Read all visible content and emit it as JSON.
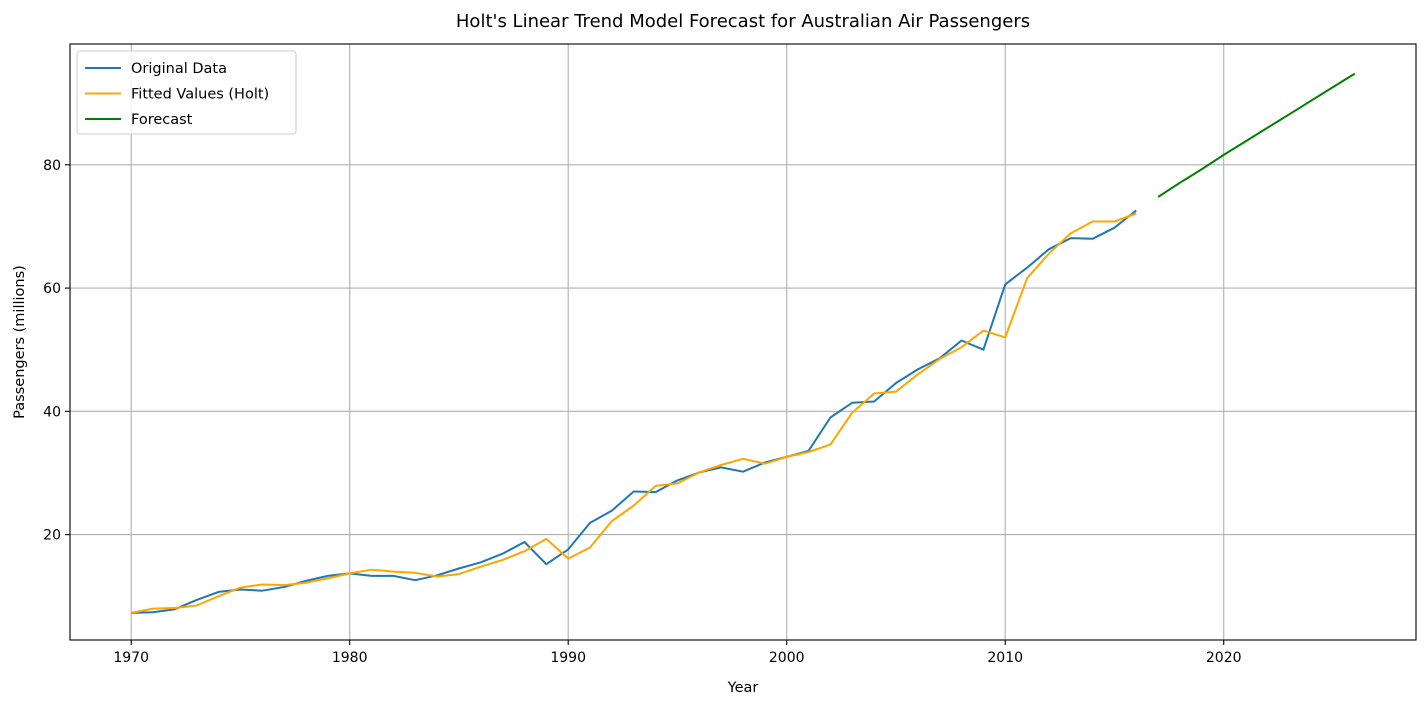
{
  "chart_data": {
    "type": "line",
    "title": "Holt's Linear Trend Model Forecast for Australian Air Passengers",
    "xlabel": "Year",
    "ylabel": "Passengers (millions)",
    "xlim": [
      1967.2,
      2028.8
    ],
    "ylim": [
      2.9,
      99.6
    ],
    "xticks": [
      1970,
      1980,
      1990,
      2000,
      2010,
      2020
    ],
    "yticks": [
      20,
      40,
      60,
      80
    ],
    "grid": true,
    "legend_position": "top-left",
    "series": [
      {
        "name": "Original Data",
        "color": "#1f77b4",
        "x": [
          1970,
          1971,
          1972,
          1973,
          1974,
          1975,
          1976,
          1977,
          1978,
          1979,
          1980,
          1981,
          1982,
          1983,
          1984,
          1985,
          1986,
          1987,
          1988,
          1989,
          1990,
          1991,
          1992,
          1993,
          1994,
          1995,
          1996,
          1997,
          1998,
          1999,
          2000,
          2001,
          2002,
          2003,
          2004,
          2005,
          2006,
          2007,
          2008,
          2009,
          2010,
          2011,
          2012,
          2013,
          2014,
          2015,
          2016
        ],
        "values": [
          7.3,
          7.4,
          7.9,
          9.4,
          10.7,
          11.1,
          10.9,
          11.5,
          12.5,
          13.3,
          13.7,
          13.3,
          13.3,
          12.6,
          13.4,
          14.5,
          15.5,
          16.9,
          18.8,
          15.2,
          17.6,
          21.9,
          23.9,
          27.0,
          26.9,
          28.8,
          30.1,
          30.9,
          30.2,
          31.7,
          32.6,
          33.6,
          39.0,
          41.4,
          41.6,
          44.6,
          46.8,
          48.6,
          51.5,
          50.0,
          60.6,
          63.3,
          66.3,
          68.1,
          68.0,
          69.8,
          72.6
        ]
      },
      {
        "name": "Fitted Values (Holt)",
        "color": "#ffa500",
        "x": [
          1970,
          1971,
          1972,
          1973,
          1974,
          1975,
          1976,
          1977,
          1978,
          1979,
          1980,
          1981,
          1982,
          1983,
          1984,
          1985,
          1986,
          1987,
          1988,
          1989,
          1990,
          1991,
          1992,
          1993,
          1994,
          1995,
          1996,
          1997,
          1998,
          1999,
          2000,
          2001,
          2002,
          2003,
          2004,
          2005,
          2006,
          2007,
          2008,
          2009,
          2010,
          2011,
          2012,
          2013,
          2014,
          2015,
          2016
        ],
        "values": [
          7.3,
          8.0,
          8.1,
          8.5,
          10.0,
          11.4,
          11.9,
          11.8,
          12.2,
          12.9,
          13.7,
          14.3,
          14.0,
          13.8,
          13.2,
          13.6,
          14.8,
          15.9,
          17.3,
          19.3,
          16.1,
          17.9,
          22.2,
          24.7,
          27.9,
          28.3,
          30.1,
          31.3,
          32.3,
          31.5,
          32.6,
          33.4,
          34.6,
          39.8,
          42.9,
          43.2,
          46.0,
          48.5,
          50.4,
          53.1,
          52.0,
          61.6,
          65.6,
          68.9,
          70.8,
          70.8,
          72.1
        ]
      },
      {
        "name": "Forecast",
        "color": "#008000",
        "x": [
          2017,
          2018,
          2019,
          2020,
          2021,
          2022,
          2023,
          2024,
          2025,
          2026
        ],
        "values": [
          74.8,
          77.1,
          79.3,
          81.6,
          83.8,
          86.0,
          88.2,
          90.4,
          92.6,
          94.8
        ]
      }
    ]
  }
}
